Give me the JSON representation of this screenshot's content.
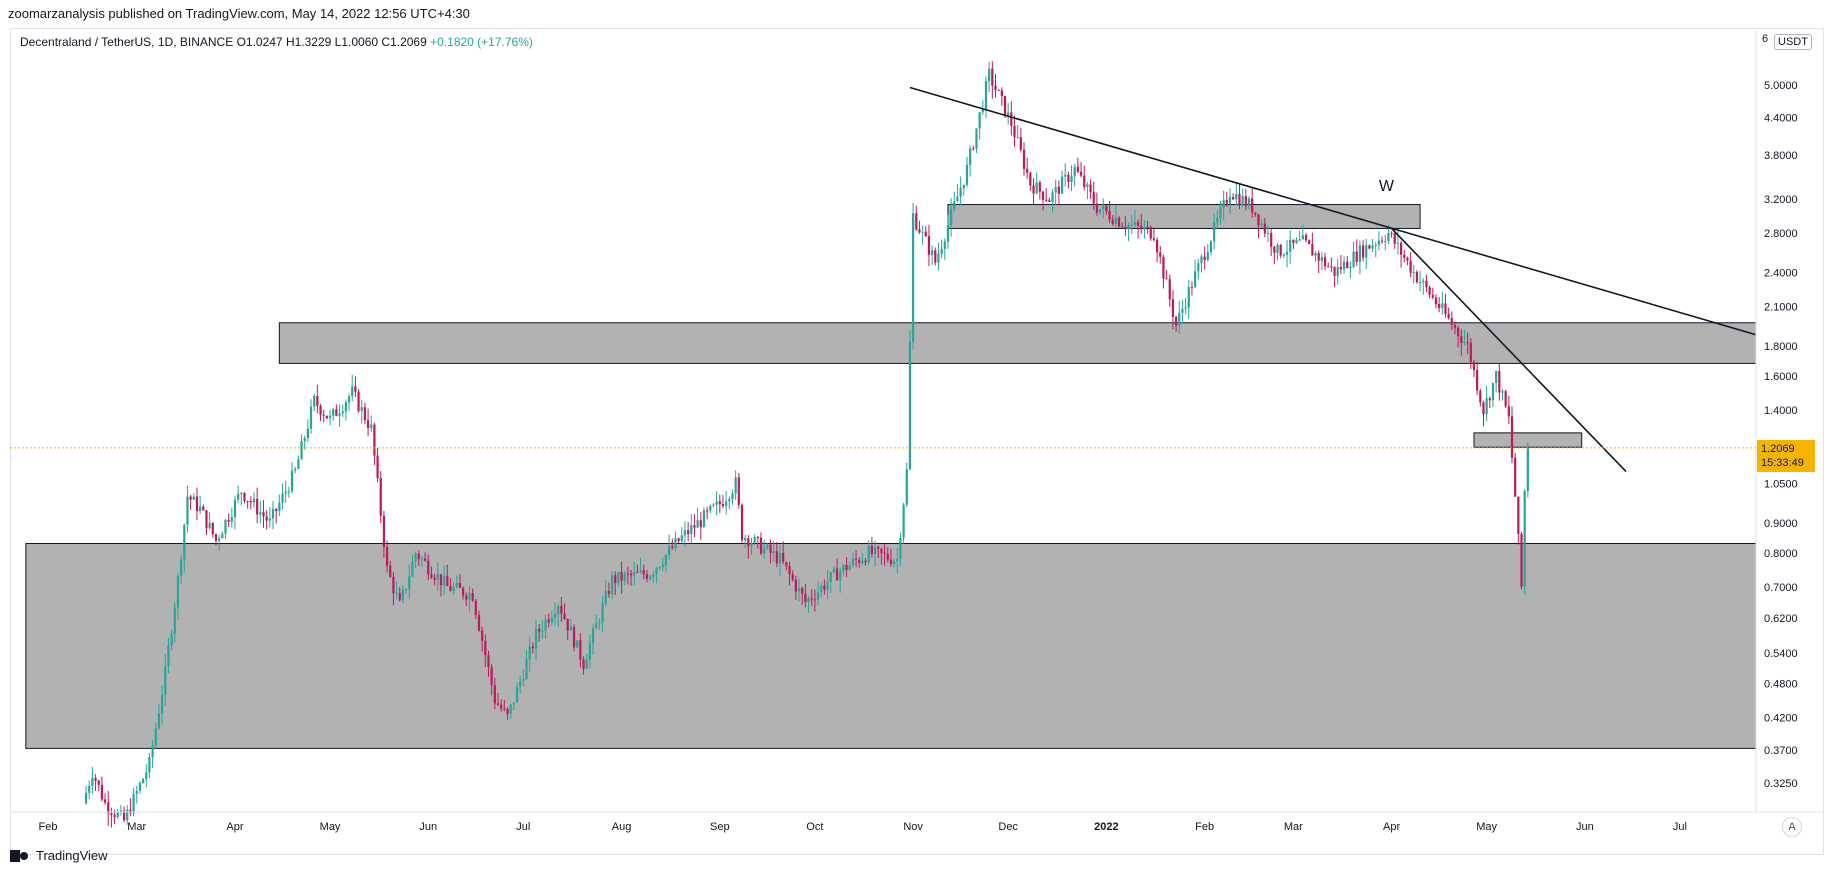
{
  "header": {
    "publish_text": "zoomarzanalysis published on TradingView.com, May 14, 2022 12:56 UTC+4:30"
  },
  "legend": {
    "symbol": "Decentraland / TetherUS, 1D, BINANCE",
    "open": "O1.0247",
    "high": "H1.3229",
    "low": "L1.0060",
    "close": "C1.2069",
    "change": "+0.1820 (+17.76%)"
  },
  "price_scale": {
    "currency": "USDT",
    "top_tick": "6",
    "last_price": "1.2069",
    "countdown": "15:33:49",
    "auto_label": "A"
  },
  "footer": {
    "brand": "TradingView"
  },
  "colors": {
    "up": "#26a69a",
    "down": "#c2185b",
    "zone": "#b2b2b2",
    "price_line": "#f5b400",
    "trendline": "#131722"
  },
  "chart_data": {
    "type": "candlestick",
    "scale": "log",
    "ylim": [
      0.29,
      6.2
    ],
    "x_range": [
      "2021-01-20",
      "2022-07-25"
    ],
    "y_ticks": [
      "5.0000",
      "4.4000",
      "3.8000",
      "3.2000",
      "2.8000",
      "2.4000",
      "2.1000",
      "1.8000",
      "1.6000",
      "1.4000",
      "1.0500",
      "0.9000",
      "0.8000",
      "0.7000",
      "0.6200",
      "0.5400",
      "0.4800",
      "0.4200",
      "0.3700",
      "0.3250"
    ],
    "x_ticks": [
      {
        "label": "Feb",
        "date": "2021-02-01"
      },
      {
        "label": "Mar",
        "date": "2021-03-01"
      },
      {
        "label": "Apr",
        "date": "2021-04-01"
      },
      {
        "label": "May",
        "date": "2021-05-01"
      },
      {
        "label": "Jun",
        "date": "2021-06-01"
      },
      {
        "label": "Jul",
        "date": "2021-07-01"
      },
      {
        "label": "Aug",
        "date": "2021-08-01"
      },
      {
        "label": "Sep",
        "date": "2021-09-01"
      },
      {
        "label": "Oct",
        "date": "2021-10-01"
      },
      {
        "label": "Nov",
        "date": "2021-11-01"
      },
      {
        "label": "Dec",
        "date": "2021-12-01"
      },
      {
        "label": "2022",
        "date": "2022-01-01"
      },
      {
        "label": "Feb",
        "date": "2022-02-01"
      },
      {
        "label": "Mar",
        "date": "2022-03-01"
      },
      {
        "label": "Apr",
        "date": "2022-04-01"
      },
      {
        "label": "May",
        "date": "2022-05-01"
      },
      {
        "label": "Jun",
        "date": "2022-06-01"
      },
      {
        "label": "Jul",
        "date": "2022-07-01"
      }
    ],
    "last_price": 1.2069,
    "price_path": [
      [
        "2021-02-12",
        0.3
      ],
      [
        "2021-02-15",
        0.34
      ],
      [
        "2021-02-19",
        0.3
      ],
      [
        "2021-02-25",
        0.28
      ],
      [
        "2021-03-05",
        0.35
      ],
      [
        "2021-03-10",
        0.5
      ],
      [
        "2021-03-14",
        0.72
      ],
      [
        "2021-03-17",
        1.0
      ],
      [
        "2021-03-21",
        0.95
      ],
      [
        "2021-03-26",
        0.84
      ],
      [
        "2021-04-03",
        1.02
      ],
      [
        "2021-04-12",
        0.9
      ],
      [
        "2021-04-20",
        1.1
      ],
      [
        "2021-04-26",
        1.45
      ],
      [
        "2021-05-01",
        1.35
      ],
      [
        "2021-05-08",
        1.5
      ],
      [
        "2021-05-14",
        1.3
      ],
      [
        "2021-05-19",
        0.75
      ],
      [
        "2021-05-23",
        0.65
      ],
      [
        "2021-05-28",
        0.8
      ],
      [
        "2021-06-07",
        0.7
      ],
      [
        "2021-06-15",
        0.68
      ],
      [
        "2021-06-22",
        0.45
      ],
      [
        "2021-06-26",
        0.42
      ],
      [
        "2021-07-05",
        0.58
      ],
      [
        "2021-07-12",
        0.66
      ],
      [
        "2021-07-20",
        0.52
      ],
      [
        "2021-07-29",
        0.72
      ],
      [
        "2021-08-10",
        0.74
      ],
      [
        "2021-08-20",
        0.85
      ],
      [
        "2021-09-01",
        0.97
      ],
      [
        "2021-09-06",
        1.05
      ],
      [
        "2021-09-08",
        0.86
      ],
      [
        "2021-09-20",
        0.78
      ],
      [
        "2021-09-28",
        0.66
      ],
      [
        "2021-10-08",
        0.74
      ],
      [
        "2021-10-18",
        0.8
      ],
      [
        "2021-10-27",
        0.78
      ],
      [
        "2021-10-30",
        1.1
      ],
      [
        "2021-11-01",
        3.0
      ],
      [
        "2021-11-08",
        2.5
      ],
      [
        "2021-11-18",
        3.6
      ],
      [
        "2021-11-25",
        5.2
      ],
      [
        "2021-12-02",
        4.3
      ],
      [
        "2021-12-08",
        3.4
      ],
      [
        "2021-12-14",
        3.2
      ],
      [
        "2021-12-22",
        3.6
      ],
      [
        "2021-12-29",
        3.1
      ],
      [
        "2022-01-07",
        2.9
      ],
      [
        "2022-01-16",
        2.8
      ],
      [
        "2022-01-23",
        1.95
      ],
      [
        "2022-01-28",
        2.3
      ],
      [
        "2022-02-09",
        3.3
      ],
      [
        "2022-02-16",
        3.1
      ],
      [
        "2022-02-24",
        2.6
      ],
      [
        "2022-03-04",
        2.7
      ],
      [
        "2022-03-14",
        2.4
      ],
      [
        "2022-03-22",
        2.6
      ],
      [
        "2022-03-31",
        2.8
      ],
      [
        "2022-04-08",
        2.4
      ],
      [
        "2022-04-16",
        2.1
      ],
      [
        "2022-04-25",
        1.8
      ],
      [
        "2022-04-30",
        1.4
      ],
      [
        "2022-05-04",
        1.6
      ],
      [
        "2022-05-08",
        1.35
      ],
      [
        "2022-05-10",
        1.0
      ],
      [
        "2022-05-12",
        0.7
      ],
      [
        "2022-05-13",
        1.02
      ],
      [
        "2022-05-14",
        1.2069
      ]
    ],
    "annotations": {
      "zones": [
        {
          "from": "2021-01-25",
          "to": "2022-07-25",
          "low": 0.372,
          "high": 0.83
        },
        {
          "from": "2021-04-15",
          "to": "2022-07-25",
          "low": 1.68,
          "high": 1.97
        },
        {
          "from": "2021-11-12",
          "to": "2022-04-10",
          "low": 2.85,
          "high": 3.13
        },
        {
          "from": "2022-04-27",
          "to": "2022-05-31",
          "low": 1.21,
          "high": 1.28
        }
      ],
      "trendlines": [
        {
          "from": [
            "2021-10-31",
            4.95
          ],
          "to": [
            "2022-07-25",
            1.88
          ]
        },
        {
          "from": [
            "2022-04-01",
            2.85
          ],
          "to": [
            "2022-06-14",
            1.1
          ]
        }
      ],
      "labels": [
        {
          "text": "W",
          "date": "2022-03-28",
          "price": 3.3
        }
      ]
    }
  }
}
